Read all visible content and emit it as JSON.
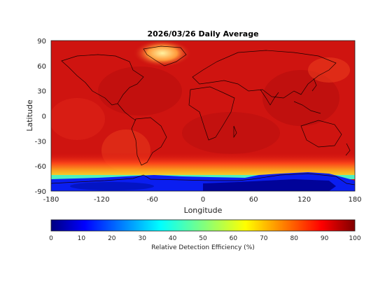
{
  "chart_data": {
    "type": "heatmap",
    "title": "2026/03/26 Daily Average",
    "xlabel": "Longitude",
    "ylabel": "Latitude",
    "xlim": [
      -180,
      180
    ],
    "ylim": [
      -90,
      90
    ],
    "xticks": [
      "-180",
      "-120",
      "-60",
      "0",
      "60",
      "120",
      "180"
    ],
    "yticks": [
      "90",
      "60",
      "30",
      "0",
      "-30",
      "-60",
      "-90"
    ],
    "colorbar": {
      "label": "Relative Detection Efficiency (%)",
      "range": [
        0,
        100
      ],
      "ticks": [
        "0",
        "10",
        "20",
        "30",
        "40",
        "50",
        "60",
        "70",
        "80",
        "90",
        "100"
      ],
      "colormap": "jet"
    },
    "field_summary": {
      "dominant_value": 95,
      "greenland_high_latitude": 70,
      "southern_ocean_band": 80,
      "antarctica": 5
    },
    "basemap": "coastlines"
  }
}
